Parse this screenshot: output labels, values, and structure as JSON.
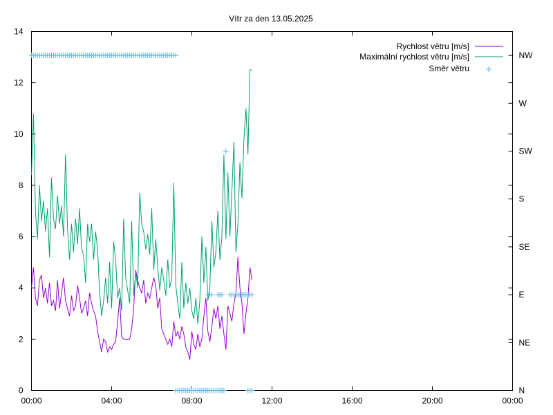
{
  "chart_data": {
    "type": "line",
    "title": "Vítr za den 13.05.2025",
    "x_axis": {
      "range": [
        "00:00",
        "24:00"
      ],
      "ticks": [
        "00:00",
        "04:00",
        "08:00",
        "12:00",
        "16:00",
        "20:00",
        "00:00"
      ]
    },
    "y_axis": {
      "range": [
        0,
        14
      ],
      "ticks": [
        "0",
        "2",
        "4",
        "6",
        "8",
        "10",
        "12",
        "14"
      ]
    },
    "y2_axis": {
      "ticks": [
        "N",
        "NE",
        "E",
        "SE",
        "S",
        "SW",
        "W",
        "NW"
      ]
    },
    "legend": "top-right",
    "grid": false,
    "series": [
      {
        "name": "Rychlost větru [m/s]",
        "type": "line",
        "color": "#9400d3",
        "x_hours": [
          0,
          0.1,
          0.2,
          0.3,
          0.4,
          0.5,
          0.6,
          0.7,
          0.8,
          0.9,
          1.0,
          1.1,
          1.2,
          1.3,
          1.4,
          1.5,
          1.6,
          1.7,
          1.8,
          1.9,
          2.0,
          2.1,
          2.2,
          2.3,
          2.4,
          2.5,
          2.6,
          2.7,
          2.8,
          2.9,
          3.0,
          3.1,
          3.2,
          3.3,
          3.4,
          3.5,
          3.6,
          3.7,
          3.8,
          3.9,
          4.0,
          4.1,
          4.2,
          4.3,
          4.4,
          4.5,
          4.6,
          4.7,
          4.8,
          4.9,
          5.0,
          5.1,
          5.2,
          5.3,
          5.4,
          5.5,
          5.6,
          5.7,
          5.8,
          5.9,
          6.0,
          6.1,
          6.2,
          6.3,
          6.4,
          6.5,
          6.6,
          6.7,
          6.8,
          6.9,
          7.0,
          7.1,
          7.2,
          7.3,
          7.4,
          7.5,
          7.6,
          7.7,
          7.8,
          7.9,
          8.0,
          8.1,
          8.2,
          8.3,
          8.4,
          8.5,
          8.6,
          8.7,
          8.8,
          8.9,
          9.0,
          9.1,
          9.2,
          9.3,
          9.4,
          9.5,
          9.6,
          9.7,
          9.8,
          9.9,
          10.0,
          10.1,
          10.2,
          10.3,
          10.4,
          10.5,
          10.6,
          10.7,
          10.8,
          10.9,
          11.0
        ],
        "values": [
          4.0,
          4.8,
          3.6,
          3.3,
          4.3,
          4.5,
          3.6,
          4.0,
          3.4,
          4.2,
          3.3,
          3.5,
          3.1,
          4.3,
          3.2,
          3.8,
          4.4,
          3.5,
          3.2,
          2.9,
          3.7,
          3.1,
          3.3,
          4.1,
          3.6,
          3.0,
          3.2,
          3.5,
          2.9,
          3.8,
          3.4,
          3.1,
          2.9,
          2.3,
          1.9,
          1.5,
          2.0,
          1.9,
          1.5,
          1.7,
          1.6,
          1.8,
          1.9,
          2.7,
          3.6,
          2.1,
          2.0,
          2.0,
          2.0,
          2.0,
          2.4,
          3.2,
          4.7,
          4.3,
          4.0,
          3.8,
          4.3,
          3.4,
          3.8,
          3.6,
          4.0,
          4.4,
          4.1,
          3.2,
          3.6,
          2.4,
          2.2,
          2.0,
          1.8,
          2.0,
          1.7,
          2.7,
          2.1,
          2.3,
          2.0,
          2.5,
          2.2,
          1.7,
          1.5,
          1.2,
          2.3,
          1.8,
          1.6,
          2.2,
          1.7,
          2.0,
          2.9,
          3.6,
          2.3,
          1.9,
          2.5,
          3.2,
          2.8,
          3.3,
          2.4,
          2.9,
          2.2,
          1.6,
          3.3,
          3.0,
          2.7,
          3.4,
          3.8,
          5.2,
          4.0,
          3.4,
          2.2,
          3.0,
          3.6,
          4.8,
          4.3
        ],
        "y_axis": "y"
      },
      {
        "name": "Maximální rychlost větru [m/s]",
        "type": "line",
        "color": "#009e73",
        "x_hours": [
          0,
          0.1,
          0.2,
          0.3,
          0.4,
          0.5,
          0.6,
          0.7,
          0.8,
          0.9,
          1.0,
          1.1,
          1.2,
          1.3,
          1.4,
          1.5,
          1.6,
          1.7,
          1.8,
          1.9,
          2.0,
          2.1,
          2.2,
          2.3,
          2.4,
          2.5,
          2.6,
          2.7,
          2.8,
          2.9,
          3.0,
          3.1,
          3.2,
          3.3,
          3.4,
          3.5,
          3.6,
          3.7,
          3.8,
          3.9,
          4.0,
          4.1,
          4.2,
          4.3,
          4.4,
          4.5,
          4.6,
          4.7,
          4.8,
          4.9,
          5.0,
          5.1,
          5.2,
          5.3,
          5.4,
          5.5,
          5.6,
          5.7,
          5.8,
          5.9,
          6.0,
          6.1,
          6.2,
          6.3,
          6.4,
          6.5,
          6.6,
          6.7,
          6.8,
          6.9,
          7.0,
          7.1,
          7.2,
          7.3,
          7.4,
          7.5,
          7.6,
          7.7,
          7.8,
          7.9,
          8.0,
          8.1,
          8.2,
          8.3,
          8.4,
          8.5,
          8.6,
          8.7,
          8.8,
          8.9,
          9.0,
          9.1,
          9.2,
          9.3,
          9.4,
          9.5,
          9.6,
          9.7,
          9.8,
          9.9,
          10.0,
          10.1,
          10.2,
          10.3,
          10.4,
          10.5,
          10.6,
          10.7,
          10.8,
          10.9,
          11.0
        ],
        "values": [
          8.4,
          10.8,
          7.0,
          5.9,
          8.0,
          6.6,
          7.4,
          6.2,
          7.1,
          5.2,
          8.3,
          6.7,
          6.3,
          7.6,
          6.5,
          7.2,
          6.0,
          9.2,
          6.3,
          5.1,
          6.5,
          5.4,
          6.7,
          5.7,
          7.1,
          5.5,
          5.3,
          4.2,
          6.5,
          5.8,
          6.5,
          5.1,
          6.2,
          5.5,
          3.8,
          2.9,
          3.5,
          4.4,
          3.4,
          5.0,
          3.2,
          5.8,
          5.1,
          3.6,
          4.0,
          3.1,
          6.7,
          4.4,
          3.9,
          3.4,
          6.6,
          3.7,
          4.6,
          4.0,
          7.7,
          6.5,
          6.2,
          5.5,
          6.1,
          5.3,
          7.1,
          4.7,
          5.9,
          4.8,
          3.9,
          4.8,
          4.3,
          3.7,
          5.1,
          4.0,
          4.4,
          8.1,
          4.1,
          3.4,
          2.8,
          5.0,
          3.2,
          4.2,
          3.4,
          4.0,
          3.1,
          2.8,
          3.6,
          2.6,
          3.5,
          6.0,
          4.2,
          5.6,
          3.5,
          4.0,
          6.6,
          4.8,
          5.4,
          7.0,
          5.1,
          6.0,
          9.2,
          5.9,
          8.5,
          6.0,
          7.8,
          9.7,
          5.4,
          6.5,
          8.9,
          7.5,
          9.8,
          11.0,
          9.2,
          12.5,
          12.5
        ],
        "y_axis": "y"
      },
      {
        "name": "Směr větru",
        "type": "scatter",
        "color": "#56b4e9",
        "marker": "+",
        "y_axis": "y2",
        "segments": [
          {
            "from_hour": 0.0,
            "to_hour": 7.2,
            "step_hours": 0.1,
            "direction": "NW"
          },
          {
            "from_hour": 7.2,
            "to_hour": 9.6,
            "step_hours": 0.1,
            "direction": "N"
          },
          {
            "from_hour": 8.8,
            "to_hour": 9.0,
            "step_hours": 0.1,
            "direction": "E"
          },
          {
            "from_hour": 9.3,
            "to_hour": 9.5,
            "step_hours": 0.1,
            "direction": "E"
          },
          {
            "from_hour": 9.7,
            "to_hour": 9.7,
            "step_hours": 0.1,
            "direction": "SW"
          },
          {
            "from_hour": 9.9,
            "to_hour": 11.0,
            "step_hours": 0.1,
            "direction": "E"
          },
          {
            "from_hour": 10.8,
            "to_hour": 11.0,
            "step_hours": 0.1,
            "direction": "N"
          }
        ]
      }
    ]
  }
}
